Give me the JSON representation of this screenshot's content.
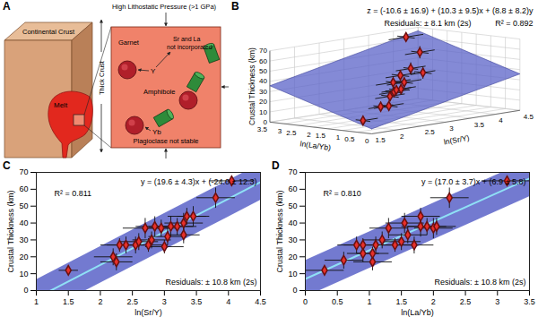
{
  "diagram": {
    "panel": "A",
    "pressure": "High Lithostatic Pressure (>1 GPa)",
    "crust": "Continental Crust",
    "thickness": "Thick Crust",
    "melt": "Melt",
    "garnet": "Garnet",
    "sr_la": [
      "Sr and La",
      "not incorporated"
    ],
    "y_element": "Y",
    "amphibole": "Amphibole",
    "yb": "Yb",
    "plagioclase": "Plagioclase not stable"
  },
  "chart_data": [
    {
      "panel": "B",
      "type": "scatter3d",
      "title": "z = (-10.6 ± 16.9) + (10.3 ± 9.5)x + (8.8 ± 8.2)y",
      "annotations": [
        "Residuals: ± 8.1 km (2s)",
        "R² = 0.892"
      ],
      "x_label": "ln(Sr/Y)",
      "y_label": "ln(La/Yb)",
      "z_label": "Crustal Thickness (km)",
      "xlim": [
        1.5,
        4.5
      ],
      "xticks": [
        1.5,
        2,
        2.5,
        3,
        3.5,
        4,
        4.5
      ],
      "ylim": [
        0,
        3.5
      ],
      "yticks": [
        0,
        0.5,
        1,
        1.5,
        2,
        2.5,
        3,
        3.5
      ],
      "zlim": [
        0,
        70
      ],
      "zticks": [
        0,
        10,
        20,
        30,
        40,
        50,
        60,
        70
      ],
      "x": [
        1.5,
        2.2,
        2.3,
        2.4,
        2.6,
        2.7,
        2.8,
        3.0,
        3.1,
        3.2,
        3.35,
        3.45,
        3.8,
        4.05
      ],
      "y": [
        0.3,
        0.6,
        1.05,
        0.9,
        1.1,
        1.3,
        1.2,
        1.7,
        1.6,
        1.9,
        1.8,
        1.55,
        2.25,
        3.15
      ],
      "z": [
        12,
        20,
        17,
        27,
        29,
        37,
        30,
        26,
        33,
        38,
        44,
        40,
        55,
        65
      ],
      "x_err": [
        0.3,
        0.3,
        0.25,
        0.3,
        0.3,
        0.35,
        0.3,
        0.3,
        0.35,
        0.3,
        0.3,
        0.25,
        0.3,
        0.35
      ],
      "y_err": [
        0.25,
        0.3,
        0.25,
        0.3,
        0.3,
        0.25,
        0.3,
        0.25,
        0.3,
        0.3,
        0.25,
        0.3,
        0.3,
        0.3
      ],
      "z_err": [
        3,
        5,
        5,
        5,
        5,
        6,
        5,
        4,
        5,
        5,
        6,
        6,
        6,
        3
      ],
      "plane": {
        "intercept": -10.6,
        "x_coef": 10.3,
        "y_coef": 8.8
      },
      "color": "#e8302a",
      "marker": "diamond",
      "grid": true
    },
    {
      "panel": "C",
      "type": "scatter",
      "title": "y = (19.6 ± 4.3)x + (-24.0 ± 12.3)",
      "annotations": [
        "R² = 0.811",
        "Residuals: ± 10.8 km (2s)"
      ],
      "x_label": "ln(Sr/Y)",
      "y_label": "Crustal Thickness (km)",
      "xlim": [
        1,
        4.5
      ],
      "xticks": [
        1,
        1.5,
        2,
        2.5,
        3,
        3.5,
        4,
        4.5
      ],
      "ylim": [
        0,
        70
      ],
      "yticks": [
        0,
        10,
        20,
        30,
        40,
        50,
        60,
        70
      ],
      "x": [
        1.5,
        2.2,
        2.25,
        2.3,
        2.4,
        2.55,
        2.6,
        2.7,
        2.75,
        2.8,
        2.85,
        2.95,
        3.0,
        3.05,
        3.1,
        3.2,
        3.3,
        3.3,
        3.35,
        3.45,
        3.8,
        4.05
      ],
      "y": [
        12,
        20,
        17,
        27,
        27,
        27,
        29,
        37,
        27,
        30,
        38,
        37,
        26,
        32,
        38,
        38,
        40,
        33,
        44,
        44,
        55,
        65
      ],
      "x_err": [
        0.15,
        0.3,
        0.25,
        0.3,
        0.3,
        0.25,
        0.3,
        0.35,
        0.3,
        0.3,
        0.3,
        0.25,
        0.3,
        0.3,
        0.35,
        0.3,
        0.3,
        0.25,
        0.3,
        0.25,
        0.3,
        0.35
      ],
      "y_err": [
        2,
        5,
        5,
        4,
        5,
        5,
        5,
        6,
        4,
        5,
        6,
        5,
        4,
        5,
        6,
        5,
        6,
        5,
        5,
        6,
        6,
        3
      ],
      "fit": {
        "slope": 19.6,
        "intercept": -24.0,
        "band": 10.8
      },
      "color": "#e8302a",
      "marker": "diamond"
    },
    {
      "panel": "D",
      "type": "scatter",
      "title": "y = (17.0 ± 3.7)x + (6.9 ± 5.8)",
      "annotations": [
        "R² = 0.810",
        "Residuals: ± 10.8 km (2s)"
      ],
      "x_label": "ln(La/Yb)",
      "y_label": "Crustal Thickness (km)",
      "xlim": [
        0,
        3.5
      ],
      "xticks": [
        0,
        0.5,
        1,
        1.5,
        2,
        2.5,
        3,
        3.5
      ],
      "ylim": [
        0,
        70
      ],
      "yticks": [
        0,
        10,
        20,
        30,
        40,
        50,
        60,
        70
      ],
      "x": [
        0.3,
        0.6,
        0.8,
        0.9,
        0.9,
        1.05,
        1.05,
        1.1,
        1.2,
        1.3,
        1.4,
        1.5,
        1.55,
        1.6,
        1.7,
        1.8,
        1.8,
        1.9,
        2.0,
        2.05,
        2.25,
        3.15
      ],
      "y": [
        12,
        18,
        27,
        27,
        22,
        17,
        22,
        27,
        30,
        37,
        27,
        29,
        40,
        33,
        27,
        38,
        44,
        38,
        37,
        38,
        55,
        65
      ],
      "x_err": [
        0.3,
        0.3,
        0.3,
        0.3,
        0.25,
        0.3,
        0.25,
        0.3,
        0.3,
        0.3,
        0.3,
        0.3,
        0.3,
        0.3,
        0.3,
        0.3,
        0.3,
        0.3,
        0.3,
        0.3,
        0.3,
        0.4
      ],
      "y_err": [
        2,
        5,
        5,
        4,
        5,
        5,
        4,
        5,
        5,
        6,
        4,
        5,
        6,
        5,
        5,
        6,
        5,
        5,
        6,
        5,
        6,
        3
      ],
      "fit": {
        "slope": 17.0,
        "intercept": 6.9,
        "band": 10.8
      },
      "color": "#e8302a",
      "marker": "diamond"
    }
  ]
}
